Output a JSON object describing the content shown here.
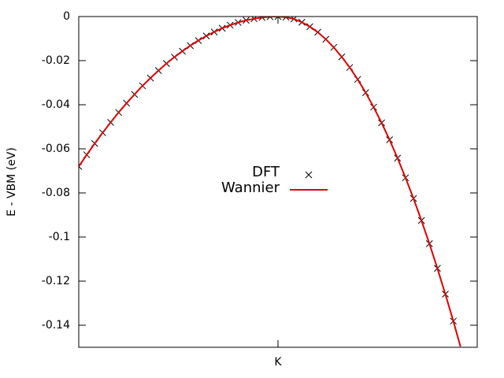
{
  "chart_data": {
    "type": "line",
    "y_label": "E - VBM (eV)",
    "xlim": [
      0,
      1
    ],
    "xticks": [
      {
        "value": 0.5,
        "label": "K"
      }
    ],
    "ylim": [
      -0.15,
      0
    ],
    "yticks": [
      0,
      -0.02,
      -0.04,
      -0.06,
      -0.08,
      -0.1,
      -0.12,
      -0.14
    ],
    "legend_position": "center",
    "series": [
      {
        "name": "DFT",
        "color": "#000000",
        "marker": "cross",
        "line": false,
        "x": [
          0,
          0.02,
          0.04,
          0.06,
          0.08,
          0.1,
          0.12,
          0.14,
          0.16,
          0.18,
          0.2,
          0.22,
          0.24,
          0.26,
          0.28,
          0.3,
          0.32,
          0.34,
          0.36,
          0.38,
          0.4,
          0.42,
          0.44,
          0.46,
          0.48,
          0.5,
          0.52,
          0.54,
          0.56,
          0.58,
          0.6,
          0.62,
          0.64,
          0.66,
          0.68,
          0.7,
          0.72,
          0.74,
          0.76,
          0.78,
          0.8,
          0.82,
          0.84,
          0.86,
          0.88,
          0.9,
          0.92,
          0.94
        ],
        "values": [
          -0.068,
          -0.0627,
          -0.0576,
          -0.0527,
          -0.048,
          -0.0435,
          -0.0393,
          -0.0353,
          -0.0314,
          -0.0279,
          -0.0245,
          -0.0213,
          -0.0184,
          -0.0157,
          -0.0132,
          -0.0109,
          -0.0088,
          -0.007,
          -0.0053,
          -0.0039,
          -0.0027,
          -0.0017,
          -0.001,
          -0.0004,
          -0.0001,
          0,
          -0.0003,
          -0.0011,
          -0.0026,
          -0.0046,
          -0.0071,
          -0.0103,
          -0.014,
          -0.0183,
          -0.0231,
          -0.0285,
          -0.0345,
          -0.0411,
          -0.0482,
          -0.0559,
          -0.0642,
          -0.0731,
          -0.0825,
          -0.0925,
          -0.103,
          -0.1142,
          -0.1259,
          -0.1381
        ]
      },
      {
        "name": "Wannier",
        "color": "#e00000",
        "marker": "none",
        "line": true,
        "x": [
          0,
          0.02,
          0.04,
          0.06,
          0.08,
          0.1,
          0.12,
          0.14,
          0.16,
          0.18,
          0.2,
          0.22,
          0.24,
          0.26,
          0.28,
          0.3,
          0.32,
          0.34,
          0.36,
          0.38,
          0.4,
          0.42,
          0.44,
          0.46,
          0.48,
          0.5,
          0.52,
          0.54,
          0.56,
          0.58,
          0.6,
          0.62,
          0.64,
          0.66,
          0.68,
          0.7,
          0.72,
          0.74,
          0.76,
          0.78,
          0.8,
          0.82,
          0.84,
          0.86,
          0.88,
          0.9,
          0.92,
          0.94,
          0.958
        ],
        "values": [
          -0.068,
          -0.0627,
          -0.0576,
          -0.0527,
          -0.048,
          -0.0435,
          -0.0393,
          -0.0353,
          -0.0314,
          -0.0279,
          -0.0245,
          -0.0213,
          -0.0184,
          -0.0157,
          -0.0132,
          -0.0109,
          -0.0088,
          -0.007,
          -0.0053,
          -0.0039,
          -0.0027,
          -0.0017,
          -0.001,
          -0.0004,
          -0.0001,
          0,
          -0.0003,
          -0.0011,
          -0.0026,
          -0.0046,
          -0.0071,
          -0.0103,
          -0.014,
          -0.0183,
          -0.0231,
          -0.0285,
          -0.0345,
          -0.0411,
          -0.0482,
          -0.0559,
          -0.0642,
          -0.0731,
          -0.0825,
          -0.0925,
          -0.103,
          -0.1142,
          -0.1259,
          -0.1381,
          -0.1497
        ]
      }
    ]
  }
}
